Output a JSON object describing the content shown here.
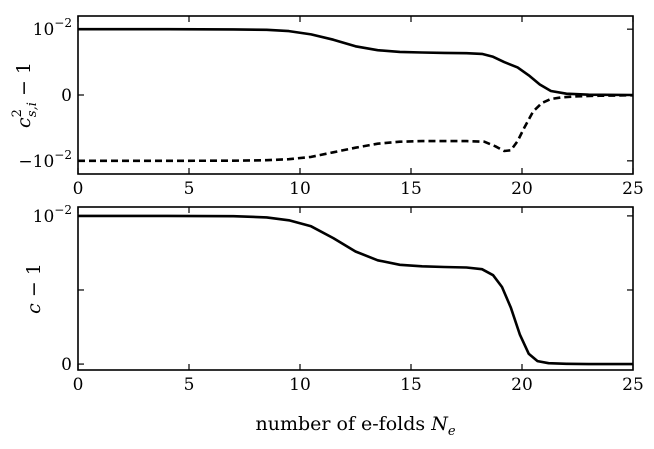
{
  "chart_data": [
    {
      "type": "line",
      "xlabel": "",
      "ylabel": "c_{s,i}^2 − 1",
      "ylabel_parts": {
        "base": "c",
        "sup": "2",
        "sub": "s,i",
        "rest": " − 1"
      },
      "xlim": [
        0,
        25
      ],
      "ylim": [
        -1.2,
        1.2
      ],
      "yscale": "symlog",
      "x_ticks": [
        0,
        5,
        10,
        15,
        20,
        25
      ],
      "x_tick_labels": [
        "0",
        "5",
        "10",
        "15",
        "20",
        "25"
      ],
      "y_ticks": [
        1,
        0,
        -1
      ],
      "y_tick_labels": [
        {
          "base": "10",
          "exp": "−2"
        },
        {
          "base": "0",
          "exp": ""
        },
        {
          "base": "−10",
          "exp": "−2"
        }
      ],
      "grid": false,
      "series": [
        {
          "style": "solid",
          "color": "#000000",
          "x": [
            0,
            4,
            7,
            8.5,
            9.5,
            10.5,
            11.5,
            12.5,
            13.5,
            14.5,
            15.5,
            16.5,
            17.5,
            18.2,
            18.7,
            19.2,
            19.8,
            20.3,
            20.8,
            21.3,
            22,
            23,
            25
          ],
          "y": [
            1.0,
            1.0,
            0.997,
            0.99,
            0.97,
            0.92,
            0.84,
            0.74,
            0.68,
            0.655,
            0.645,
            0.64,
            0.635,
            0.625,
            0.58,
            0.5,
            0.42,
            0.3,
            0.16,
            0.06,
            0.02,
            0.005,
            0
          ]
        },
        {
          "style": "dashed",
          "color": "#000000",
          "x": [
            0,
            4,
            7,
            8.5,
            9.5,
            10.5,
            11.5,
            12.5,
            13.5,
            14.5,
            15.5,
            16.5,
            17.5,
            18.3,
            18.8,
            19.2,
            19.5,
            19.8,
            20.1,
            20.5,
            20.9,
            21.3,
            21.8,
            22.5,
            23.5,
            25
          ],
          "y": [
            -1.0,
            -1.0,
            -0.998,
            -0.99,
            -0.975,
            -0.94,
            -0.87,
            -0.8,
            -0.74,
            -0.71,
            -0.7,
            -0.7,
            -0.7,
            -0.71,
            -0.78,
            -0.85,
            -0.84,
            -0.7,
            -0.5,
            -0.25,
            -0.12,
            -0.06,
            -0.035,
            -0.02,
            -0.01,
            -0.005
          ]
        }
      ]
    },
    {
      "type": "line",
      "xlabel": "number of e-folds N_e",
      "xlabel_parts": {
        "text": "number of e-folds ",
        "var": "N",
        "sub": "e"
      },
      "ylabel": "c − 1",
      "xlim": [
        0,
        25
      ],
      "ylim": [
        -0.04,
        1.06
      ],
      "yscale": "symlog",
      "x_ticks": [
        0,
        5,
        10,
        15,
        20,
        25
      ],
      "x_tick_labels": [
        "0",
        "5",
        "10",
        "15",
        "20",
        "25"
      ],
      "y_ticks": [
        1,
        0.5,
        0
      ],
      "y_tick_labels": [
        {
          "base": "10",
          "exp": "−2"
        },
        {
          "base": "",
          "exp": ""
        },
        {
          "base": "0",
          "exp": ""
        }
      ],
      "grid": false,
      "series": [
        {
          "style": "solid",
          "color": "#000000",
          "x": [
            0,
            4,
            7,
            8.5,
            9.5,
            10.5,
            11.5,
            12.5,
            13.5,
            14.5,
            15.5,
            16.5,
            17.5,
            18.2,
            18.7,
            19.1,
            19.5,
            19.9,
            20.3,
            20.7,
            21.2,
            22,
            23,
            25
          ],
          "y": [
            1.0,
            1.0,
            0.998,
            0.99,
            0.97,
            0.93,
            0.85,
            0.76,
            0.7,
            0.67,
            0.66,
            0.655,
            0.652,
            0.64,
            0.6,
            0.52,
            0.38,
            0.2,
            0.07,
            0.02,
            0.006,
            0.002,
            0,
            0
          ]
        }
      ]
    }
  ]
}
